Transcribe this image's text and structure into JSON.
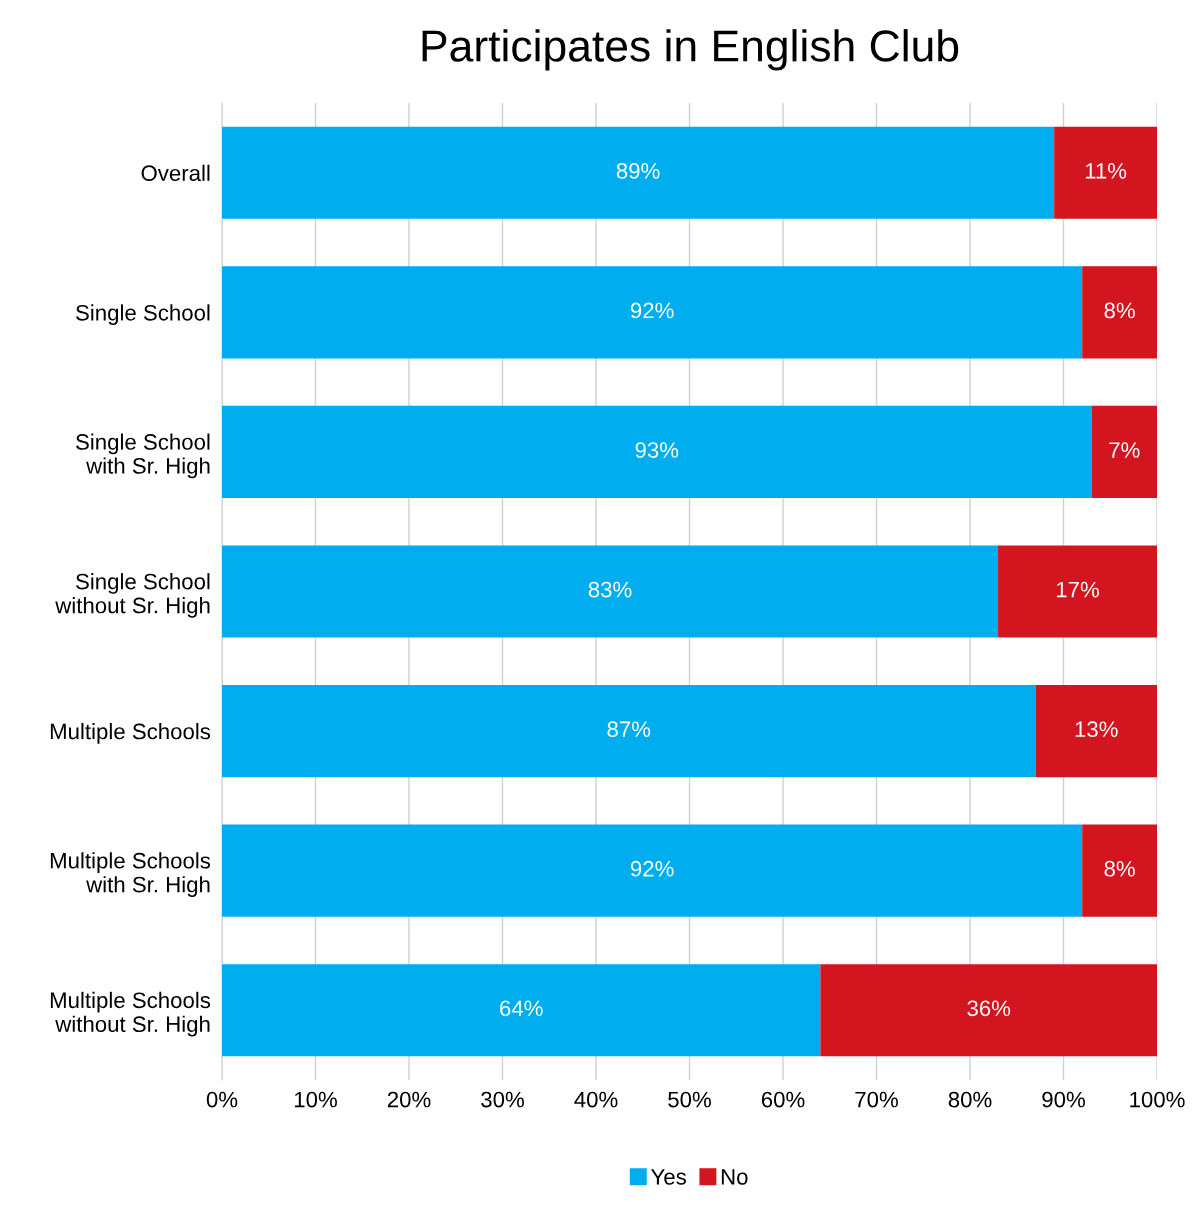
{
  "chart_data": {
    "type": "bar",
    "orientation": "horizontal",
    "stacked": true,
    "title": "Participates in English Club",
    "categories": [
      "Overall",
      "Single School",
      "Single School\nwith Sr. High",
      "Single School\nwithout Sr. High",
      "Multiple Schools",
      "Multiple Schools\nwith Sr. High",
      "Multiple Schools\nwithout Sr. High"
    ],
    "series": [
      {
        "name": "Yes",
        "color": "#00aeef",
        "values": [
          89,
          92,
          93,
          83,
          87,
          92,
          64
        ],
        "value_labels": [
          "89%",
          "92%",
          "93%",
          "83%",
          "87%",
          "92%",
          "64%"
        ]
      },
      {
        "name": "No",
        "color": "#d2151e",
        "values": [
          11,
          8,
          7,
          17,
          13,
          8,
          36
        ],
        "value_labels": [
          "11%",
          "8%",
          "7%",
          "17%",
          "13%",
          "8%",
          "36%"
        ]
      }
    ],
    "xlim": [
      0,
      100
    ],
    "xticks": [
      {
        "value": 0,
        "label": "0%"
      },
      {
        "value": 10,
        "label": "10%"
      },
      {
        "value": 20,
        "label": "20%"
      },
      {
        "value": 30,
        "label": "30%"
      },
      {
        "value": 40,
        "label": "40%"
      },
      {
        "value": 50,
        "label": "50%"
      },
      {
        "value": 60,
        "label": "60%"
      },
      {
        "value": 70,
        "label": "70%"
      },
      {
        "value": 80,
        "label": "80%"
      },
      {
        "value": 90,
        "label": "90%"
      },
      {
        "value": 100,
        "label": "100%"
      }
    ],
    "grid": "x",
    "legend": "bottom"
  }
}
